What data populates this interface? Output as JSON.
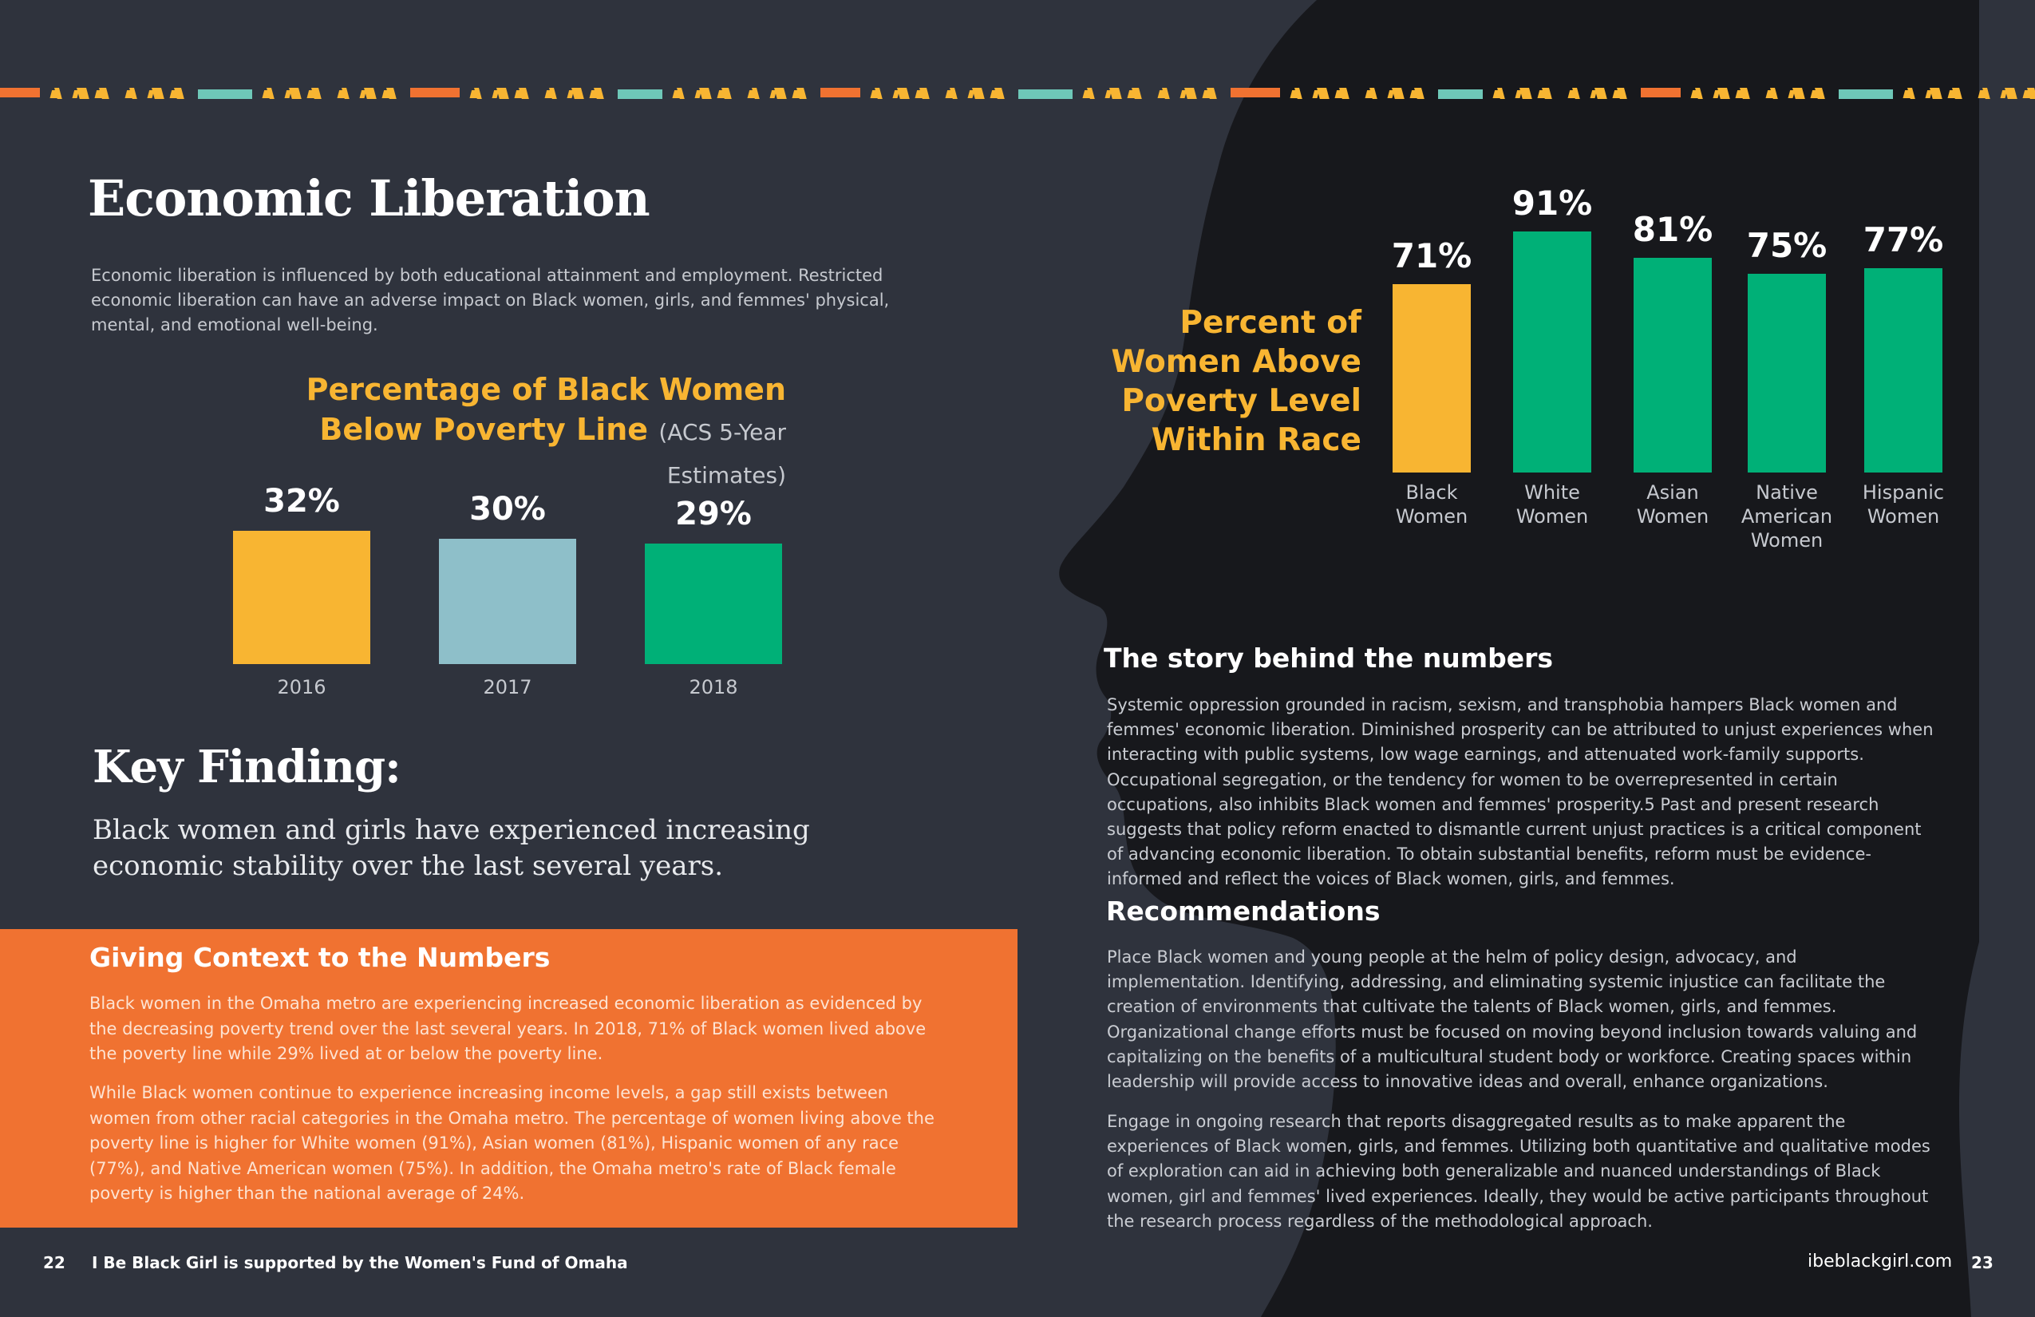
{
  "left_page": {
    "title": "Economic Liberation",
    "intro": "Economic liberation is influenced by both educational attainment and employment. Restricted economic liberation can have an adverse impact on Black women, girls, and femmes' physical, mental, and emotional well-being.",
    "chart_title_line1": "Percentage of Black Women",
    "chart_title_line2": "Below Poverty Line",
    "chart_title_sub": "(ACS 5-Year Estimates)",
    "key_finding_title": "Key Finding:",
    "key_finding_body": "Black women and girls have experienced increasing economic stability over the last several years.",
    "context": {
      "title": "Giving Context to the Numbers",
      "p1": "Black women in the Omaha metro are experiencing increased economic liberation as evidenced by the decreasing poverty trend over the last several years. In 2018, 71% of Black women lived above the poverty line while 29% lived at or below the poverty line.",
      "p2": "While Black women continue to experience increasing income levels, a gap still exists between women from other racial categories in the Omaha metro. The percentage of women living above the poverty line is higher for White women (91%), Asian women (81%), Hispanic women of any race (77%), and Native American women (75%). In addition, the Omaha metro's rate of Black female poverty is higher than the national average of 24%."
    },
    "footer_page_number": "22",
    "footer_text": "I Be Black Girl is supported by the Women's Fund of Omaha"
  },
  "right_page": {
    "chart_title_line1": "Percent of",
    "chart_title_line2": "Women Above",
    "chart_title_line3": "Poverty Level",
    "chart_title_line4": "Within Race",
    "story_title": "The story behind the numbers",
    "story_body": "Systemic oppression grounded in racism, sexism, and transphobia hampers Black women and femmes' economic liberation. Diminished prosperity can be attributed to unjust experiences when interacting with public systems, low wage earnings, and attenuated work-family supports. Occupational segregation, or the tendency for women to be overrepresented in certain occupations, also inhibits Black women and femmes' prosperity.5 Past and present research suggests that policy reform enacted to dismantle current unjust practices is a critical component of advancing economic liberation. To obtain substantial benefits, reform must be evidence-informed and reflect the voices of Black women, girls, and femmes.",
    "recs_title": "Recommendations",
    "recs_p1": "Place Black women and young people at the helm of policy design, advocacy, and implementation. Identifying, addressing, and eliminating systemic injustice can facilitate the creation of environments that cultivate the talents of Black women, girls, and femmes. Organizational change efforts must be focused on moving beyond inclusion towards valuing and capitalizing on the benefits of a multicultural student body or workforce. Creating spaces within leadership will provide access to innovative ideas and overall, enhance organizations.",
    "recs_p2": "Engage in ongoing research that reports disaggregated results as to make apparent the experiences of Black women, girls, and femmes. Utilizing both quantitative and qualitative modes of exploration can aid in achieving both generalizable and nuanced understandings of Black women, girl and femmes' lived experiences. Ideally, they would be active participants throughout the research process regardless of the methodological approach.",
    "footer_site": "ibeblackgirl.com",
    "footer_page_number": "23"
  },
  "colors": {
    "background": "#2f333d",
    "silhouette": "#17181c",
    "yellow": "#f8b532",
    "teal_light": "#8ebfc9",
    "green": "#00b077",
    "orange": "#f07231",
    "mint": "#6ec8b8"
  },
  "chart_data": [
    {
      "type": "bar",
      "title": "Percentage of Black Women Below Poverty Line (ACS 5-Year Estimates)",
      "categories": [
        "2016",
        "2017",
        "2018"
      ],
      "values": [
        32,
        30,
        29
      ],
      "value_labels": [
        "32%",
        "30%",
        "29%"
      ],
      "colors": [
        "#f8b532",
        "#8ebfc9",
        "#00b077"
      ],
      "grid": false
    },
    {
      "type": "bar",
      "title": "Percent of Women Above Poverty Level Within Race",
      "categories": [
        [
          "Black",
          "Women"
        ],
        [
          "White",
          "Women"
        ],
        [
          "Asian",
          "Women"
        ],
        [
          "Native",
          "American",
          "Women"
        ],
        [
          "Hispanic",
          "Women"
        ]
      ],
      "values": [
        71,
        91,
        81,
        75,
        77
      ],
      "value_labels": [
        "71%",
        "91%",
        "81%",
        "75%",
        "77%"
      ],
      "colors": [
        "#f8b532",
        "#00b077",
        "#00b077",
        "#00b077",
        "#00b077"
      ],
      "grid": false
    }
  ]
}
